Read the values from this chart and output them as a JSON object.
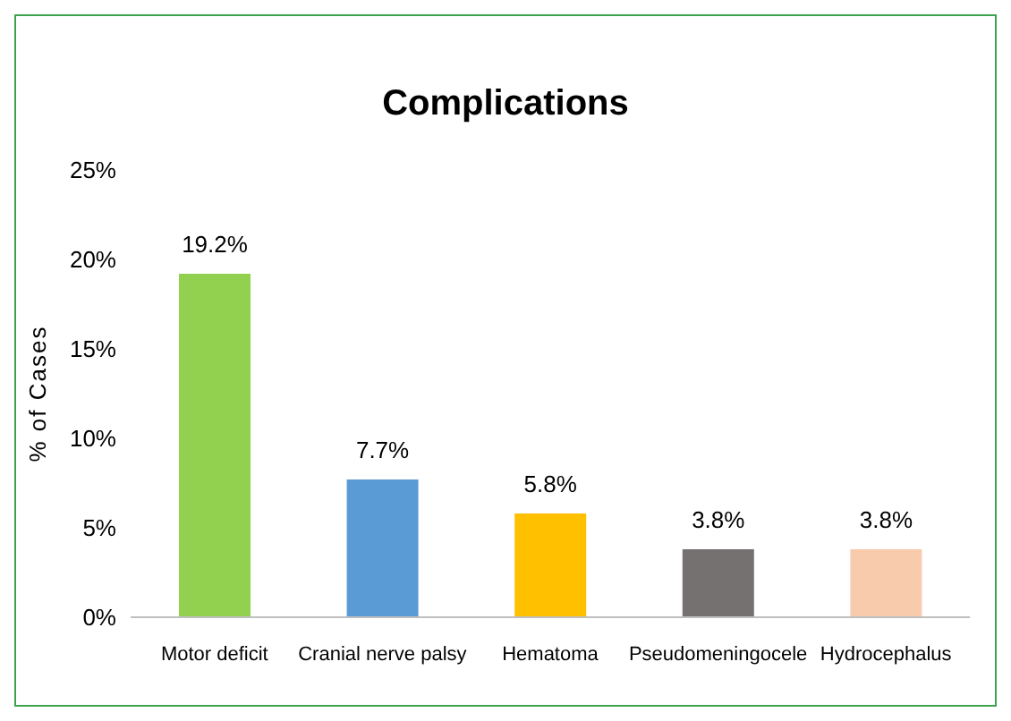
{
  "chart_data": {
    "type": "bar",
    "title": "Complications",
    "ylabel": "% of Cases",
    "categories": [
      "Motor deficit",
      "Cranial nerve palsy",
      "Hematoma",
      "Pseudomeningocele",
      "Hydrocephalus"
    ],
    "values": [
      19.2,
      7.7,
      5.8,
      3.8,
      3.8
    ],
    "colors": [
      "#92d050",
      "#5b9bd5",
      "#ffc000",
      "#767171",
      "#f8cbad"
    ],
    "value_labels": [
      "19.2%",
      "7.7%",
      "5.8%",
      "3.8%",
      "3.8%"
    ],
    "ylim": [
      0,
      25
    ],
    "yticks": [
      {
        "value": 0,
        "label": "0%"
      },
      {
        "value": 5,
        "label": "5%"
      },
      {
        "value": 10,
        "label": "10%"
      },
      {
        "value": 15,
        "label": "15%"
      },
      {
        "value": 20,
        "label": "20%"
      },
      {
        "value": 25,
        "label": "25%"
      }
    ],
    "grid": false
  }
}
